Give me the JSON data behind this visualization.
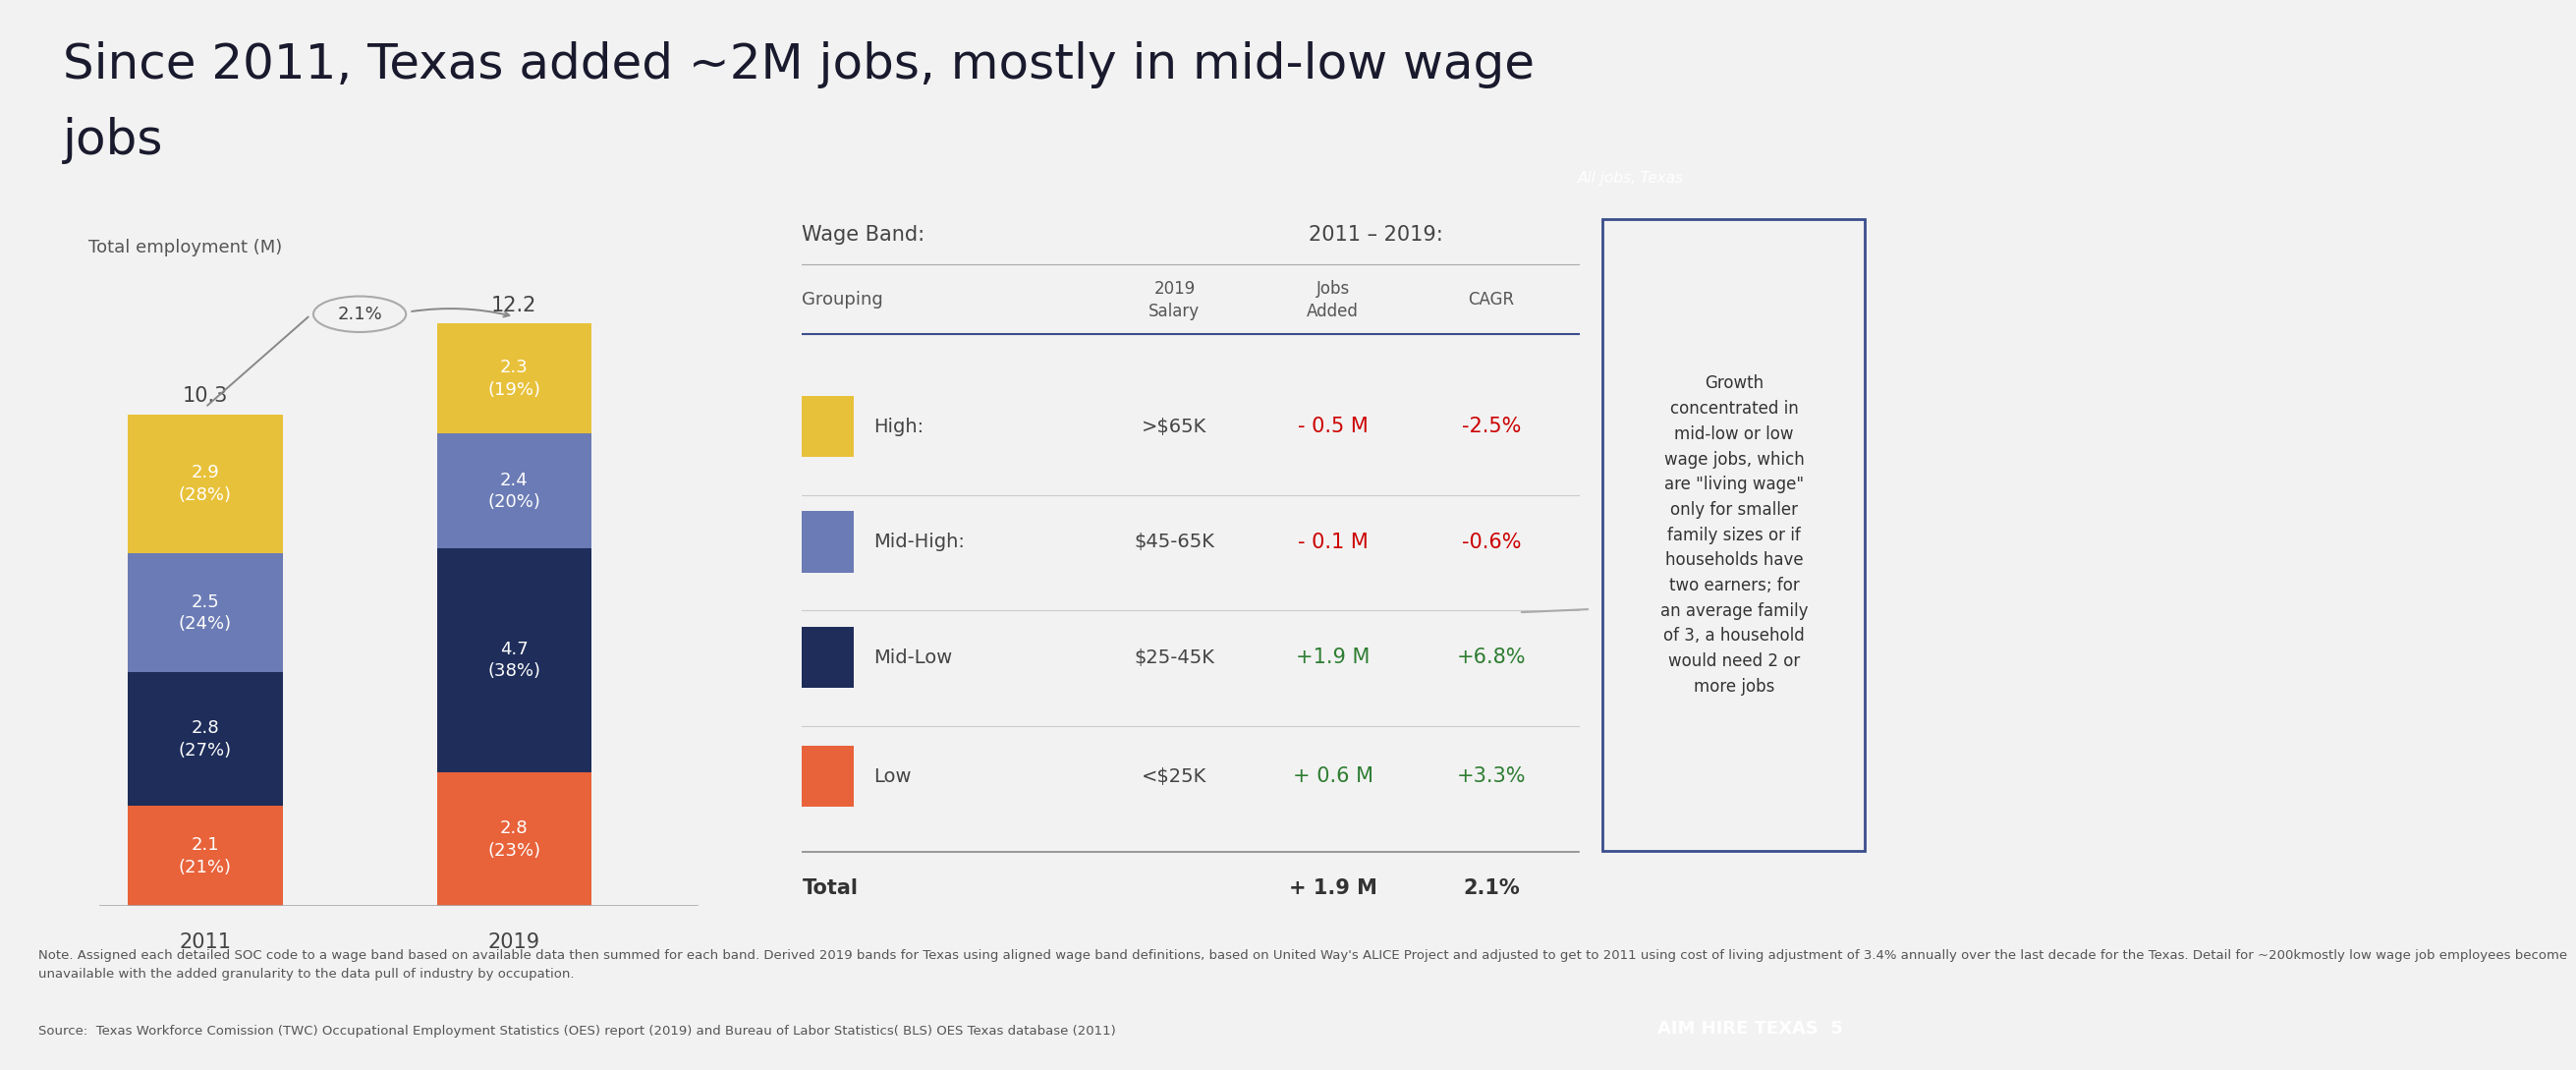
{
  "title_line1": "Since 2011, Texas added ~2M jobs, mostly in mid-low wage",
  "title_line2": "jobs",
  "bg_color": "#f2f2f2",
  "title_bg_color": "#f2f2f2",
  "bar_width": 0.52,
  "bar_positions": [
    1,
    2
  ],
  "bar_labels": [
    "2011",
    "2019"
  ],
  "bar_totals": [
    "10.3",
    "12.2"
  ],
  "segments": {
    "2011": {
      "Low": {
        "value": 2.1,
        "pct": "21%",
        "color": "#E8623A"
      },
      "MidLow": {
        "value": 2.8,
        "pct": "27%",
        "color": "#1E2D5A"
      },
      "MidHigh": {
        "value": 2.5,
        "pct": "24%",
        "color": "#6B7BB5"
      },
      "High": {
        "value": 2.9,
        "pct": "28%",
        "color": "#E8C13A"
      }
    },
    "2019": {
      "Low": {
        "value": 2.8,
        "pct": "23%",
        "color": "#E8623A"
      },
      "MidLow": {
        "value": 4.7,
        "pct": "38%",
        "color": "#1E2D5A"
      },
      "MidHigh": {
        "value": 2.4,
        "pct": "20%",
        "color": "#6B7BB5"
      },
      "High": {
        "value": 2.3,
        "pct": "19%",
        "color": "#E8C13A"
      }
    }
  },
  "cagr_annotation": "2.1%",
  "ylabel": "Total employment (M)",
  "divider_color": "#3B4E8C",
  "header_tag": "All jobs, Texas",
  "table_header_wage": "Wage Band:",
  "table_header_period": "2011 – 2019:",
  "table_col_grouping": "Grouping",
  "table_col_salary": "2019\nSalary",
  "table_col_jobs": "Jobs\nAdded",
  "table_col_cagr": "CAGR",
  "table_rows": [
    {
      "label": "High:",
      "salary": ">$65K",
      "jobs": "- 0.5 M",
      "cagr": "-2.5%",
      "color": "#E8C13A",
      "jobs_color": "#cc0000",
      "cagr_color": "#cc0000"
    },
    {
      "label": "Mid-High:",
      "salary": "$45-65K",
      "jobs": "- 0.1 M",
      "cagr": "-0.6%",
      "color": "#6B7BB5",
      "jobs_color": "#cc0000",
      "cagr_color": "#cc0000"
    },
    {
      "label": "Mid-Low",
      "salary": "$25-45K",
      "jobs": "+1.9 M",
      "cagr": "+6.8%",
      "color": "#1E2D5A",
      "jobs_color": "#2e7d32",
      "cagr_color": "#2e7d32"
    },
    {
      "label": "Low",
      "salary": "<$25K",
      "jobs": "+ 0.6 M",
      "cagr": "+3.3%",
      "color": "#E8623A",
      "jobs_color": "#2e7d32",
      "cagr_color": "#2e7d32"
    }
  ],
  "table_total_jobs": "+ 1.9 M",
  "table_total_cagr": "2.1%",
  "sidebar_text": "Growth\nconcentrated in\nmid-low or low\nwage jobs, which\nare \"living wage\"\nonly for smaller\nfamily sizes or if\nhouseholds have\ntwo earners; for\nan average family\nof 3, a household\nwould need 2 or\nmore jobs",
  "footer_note": "Note. Assigned each detailed SOC code to a wage band based on available data then summed for each band. Derived 2019 bands for Texas using aligned wage band definitions, based on United Way's ALICE Project and adjusted to get to 2011 using cost of living adjustment of 3.4% annually over the last decade for the Texas. Detail for ~200kmostly low wage job employees become\nunavailable with the added granularity to the data pull of industry by occupation.",
  "footer_source": "Source:  Texas Workforce Comission (TWC) Occupational Employment Statistics (OES) report (2019) and Bureau of Labor Statistics( BLS) OES Texas database (2011)",
  "brand_text": "AIM HIRE TEXAS  5",
  "brand_bg": "#2B3A6B"
}
